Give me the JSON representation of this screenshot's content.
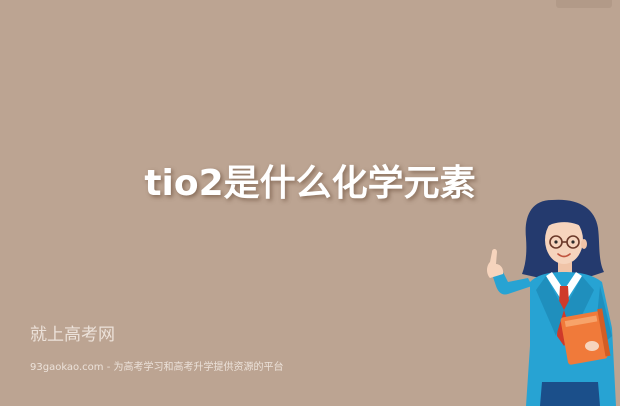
{
  "title": "tio2是什么化学元素",
  "brand": {
    "name": "就上高考网",
    "slogan": "93gaokao.com - 为高考学习和高考升学提供资源的平台"
  },
  "illustration": {
    "subject": "teacher-pointing-up",
    "colors": {
      "background": "#bca492",
      "hair": "#243a6e",
      "skin": "#f6d4bd",
      "jacket": "#27a3d3",
      "shirt": "#ffffff",
      "tie": "#cf3a2a",
      "book": "#f07a3a"
    }
  }
}
